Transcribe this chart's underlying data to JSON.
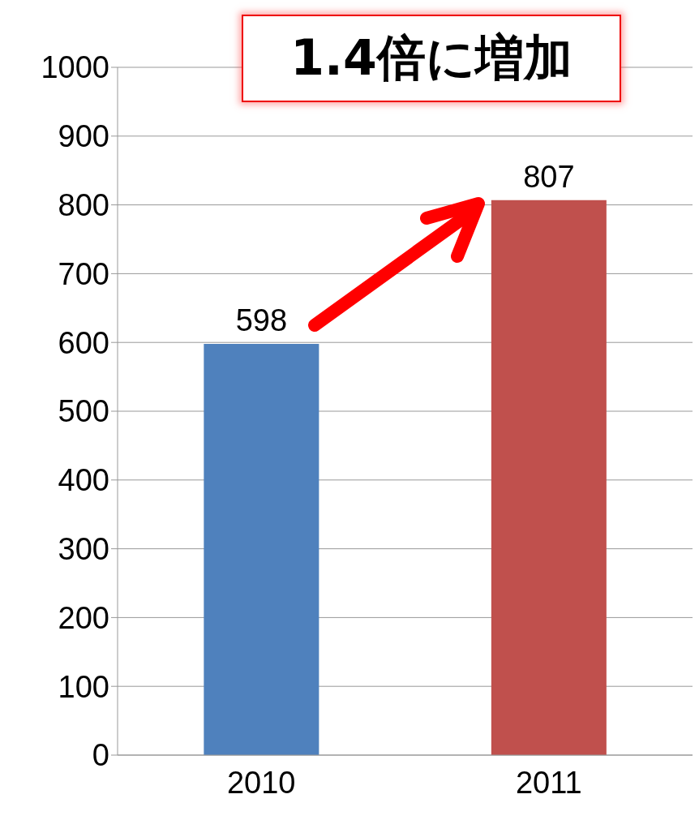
{
  "chart_data": {
    "type": "bar",
    "categories": [
      "2010",
      "2011"
    ],
    "values": [
      598,
      807
    ],
    "colors": [
      "#4f81bd",
      "#c0504d"
    ],
    "ylim": [
      0,
      1000
    ],
    "yticks": [
      0,
      100,
      200,
      300,
      400,
      500,
      600,
      700,
      800,
      900,
      1000
    ],
    "grid": "y",
    "data_labels": true,
    "annotations": [
      "1.4倍に増加"
    ]
  }
}
